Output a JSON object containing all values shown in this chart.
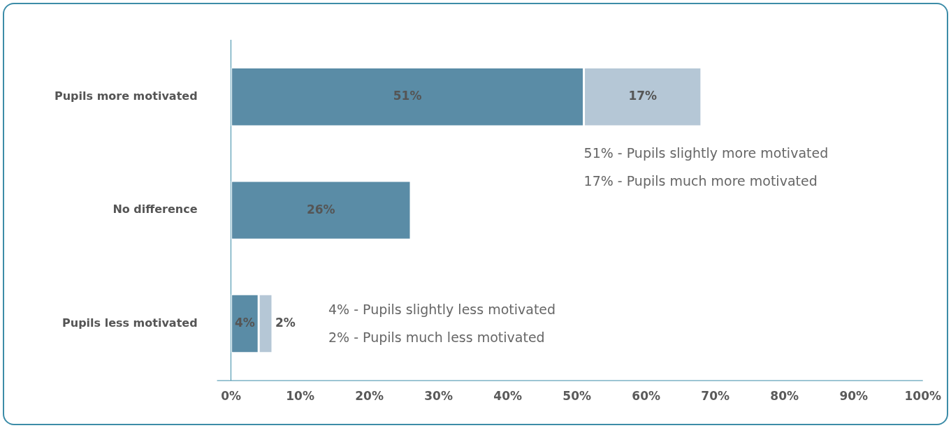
{
  "chart_data": {
    "type": "bar",
    "orientation": "horizontal",
    "stacked": true,
    "categories": [
      "Pupils more motivated",
      "No difference",
      "Pupils less motivated"
    ],
    "series": [
      {
        "color": "#5a8ca6",
        "values": [
          51,
          26,
          4
        ],
        "value_labels": [
          "51%",
          "26%",
          "4%"
        ]
      },
      {
        "color": "#b5c7d6",
        "values": [
          17,
          null,
          2
        ],
        "value_labels": [
          "17%",
          null,
          "2%"
        ]
      }
    ],
    "xlim": [
      0,
      100
    ],
    "xticks": [
      {
        "value": 0,
        "label": "0%"
      },
      {
        "value": 10,
        "label": "10%"
      },
      {
        "value": 20,
        "label": "20%"
      },
      {
        "value": 30,
        "label": "30%"
      },
      {
        "value": 40,
        "label": "40%"
      },
      {
        "value": 50,
        "label": "50%"
      },
      {
        "value": 60,
        "label": "60%"
      },
      {
        "value": 70,
        "label": "70%"
      },
      {
        "value": 80,
        "label": "80%"
      },
      {
        "value": 90,
        "label": "90%"
      },
      {
        "value": 100,
        "label": "100%"
      }
    ],
    "grid": false,
    "legend": false,
    "annotations": [
      "51% - Pupils slightly more motivated",
      "17% - Pupils much more motivated",
      "4% - Pupils slightly less motivated",
      "2% - Pupils much less motivated"
    ]
  }
}
